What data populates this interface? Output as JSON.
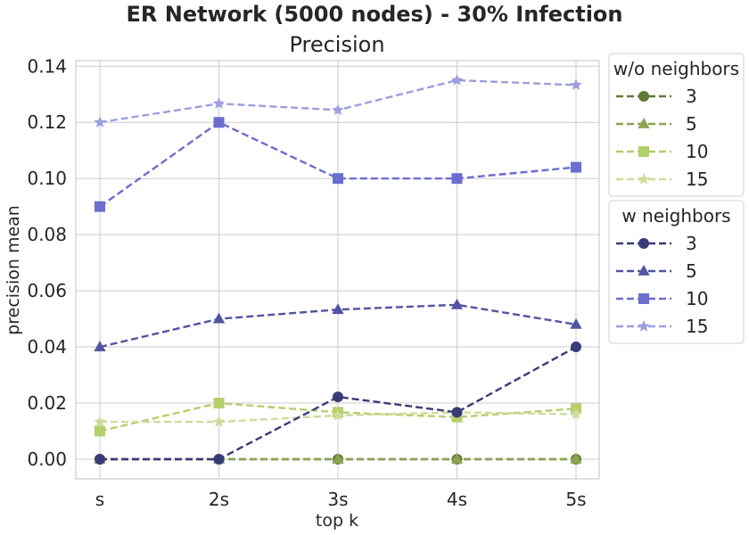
{
  "chart_data": {
    "type": "line",
    "title": "ER Network (5000 nodes) - 30% Infection",
    "subtitle": "Precision",
    "xlabel": "top k",
    "ylabel": "precision mean",
    "categories": [
      "s",
      "2s",
      "3s",
      "4s",
      "5s"
    ],
    "ylim": [
      -0.007,
      0.142
    ],
    "yticks": [
      "0.00",
      "0.02",
      "0.04",
      "0.06",
      "0.08",
      "0.10",
      "0.12",
      "0.14"
    ],
    "ytick_values": [
      0,
      0.02,
      0.04,
      0.06,
      0.08,
      0.1,
      0.12,
      0.14
    ],
    "grid": true,
    "legend_placement": "outside-right",
    "legend_groups": [
      {
        "title": "w/o neighbors",
        "entries": [
          "3",
          "5",
          "10",
          "15"
        ]
      },
      {
        "title": "w neighbors",
        "entries": [
          "3",
          "5",
          "10",
          "15"
        ]
      }
    ],
    "series": [
      {
        "name": "3",
        "group": "w/o neighbors",
        "color": "#637939",
        "marker": "circle",
        "values": [
          0.0,
          0.0,
          0.0,
          0.0,
          0.0
        ]
      },
      {
        "name": "5",
        "group": "w/o neighbors",
        "color": "#8ca252",
        "marker": "triangle",
        "values": [
          0.0,
          0.0,
          0.0,
          0.0,
          0.0
        ]
      },
      {
        "name": "10",
        "group": "w/o neighbors",
        "color": "#b5cf6b",
        "marker": "square",
        "values": [
          0.01,
          0.02,
          0.0167,
          0.015,
          0.018
        ]
      },
      {
        "name": "15",
        "group": "w/o neighbors",
        "color": "#cedb9c",
        "marker": "star",
        "values": [
          0.0133,
          0.0133,
          0.0156,
          0.0167,
          0.016
        ]
      },
      {
        "name": "3",
        "group": "w neighbors",
        "color": "#393b79",
        "marker": "circle",
        "values": [
          0.0,
          0.0,
          0.0222,
          0.0167,
          0.04
        ]
      },
      {
        "name": "5",
        "group": "w neighbors",
        "color": "#5254a3",
        "marker": "triangle",
        "values": [
          0.04,
          0.05,
          0.0533,
          0.055,
          0.048
        ]
      },
      {
        "name": "10",
        "group": "w neighbors",
        "color": "#6b6ecf",
        "marker": "square",
        "values": [
          0.09,
          0.12,
          0.1,
          0.1,
          0.104
        ]
      },
      {
        "name": "15",
        "group": "w neighbors",
        "color": "#9c9ede",
        "marker": "star",
        "values": [
          0.12,
          0.1267,
          0.1244,
          0.135,
          0.1333
        ]
      }
    ]
  }
}
